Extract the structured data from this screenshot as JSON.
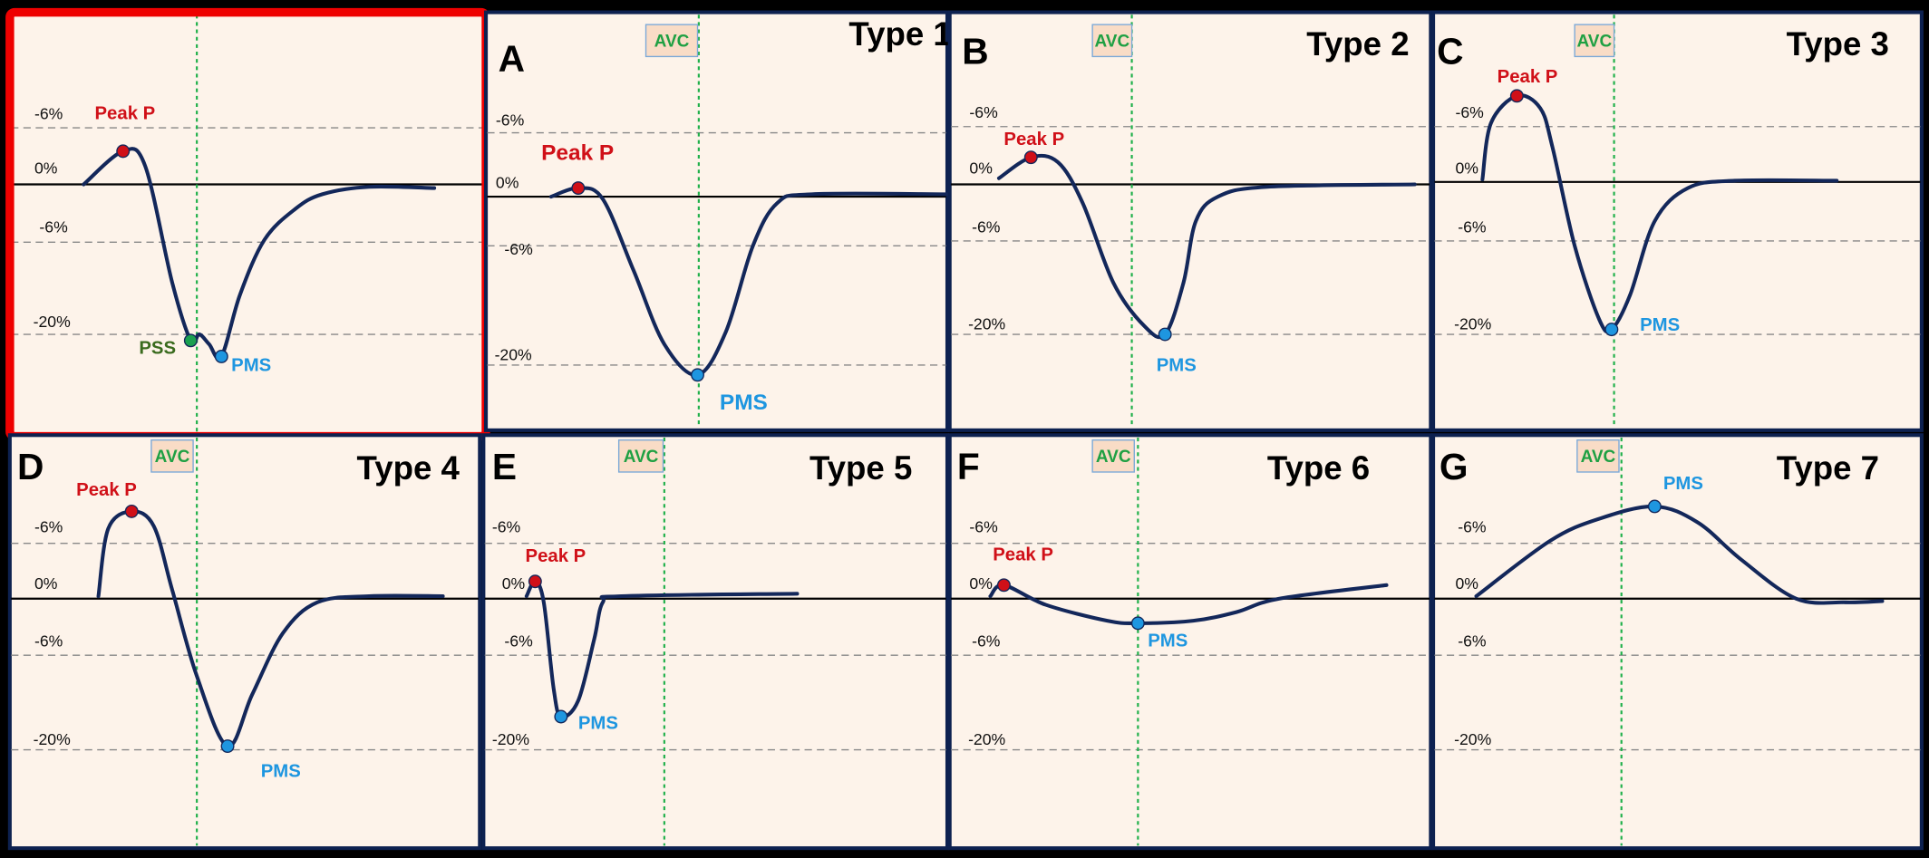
{
  "colors": {
    "background": "#000000",
    "panel_fill": "#fdf3ea",
    "panel_border": "#0d2150",
    "highlight_border": "#ee0000",
    "curve": "#13275a",
    "peak_p": "#d01018",
    "pms": "#1e96e0",
    "pss": "#1aa050",
    "avc_line": "#1fb04a"
  },
  "common": {
    "avc": "AVC",
    "peak_p": "Peak P",
    "pms": "PMS",
    "pss": "PSS",
    "tick_top": "-6%",
    "tick_zero": "0%",
    "tick_mid": "-6%",
    "tick_low": "-20%"
  },
  "panels": [
    {
      "letter": "",
      "type": "",
      "highlighted": true,
      "markers": [
        "Peak P",
        "PSS",
        "PMS"
      ]
    },
    {
      "letter": "A",
      "type": "Type 1",
      "markers": [
        "Peak P",
        "PMS"
      ]
    },
    {
      "letter": "B",
      "type": "Type 2",
      "markers": [
        "Peak P",
        "PMS"
      ]
    },
    {
      "letter": "C",
      "type": "Type 3",
      "markers": [
        "Peak P",
        "PMS"
      ]
    },
    {
      "letter": "D",
      "type": "Type 4",
      "markers": [
        "Peak P",
        "PMS"
      ]
    },
    {
      "letter": "E",
      "type": "Type 5",
      "markers": [
        "Peak P",
        "PMS"
      ]
    },
    {
      "letter": "F",
      "type": "Type 6",
      "markers": [
        "Peak P",
        "PMS"
      ]
    },
    {
      "letter": "G",
      "type": "Type 7",
      "markers": [
        "PMS"
      ]
    }
  ]
}
